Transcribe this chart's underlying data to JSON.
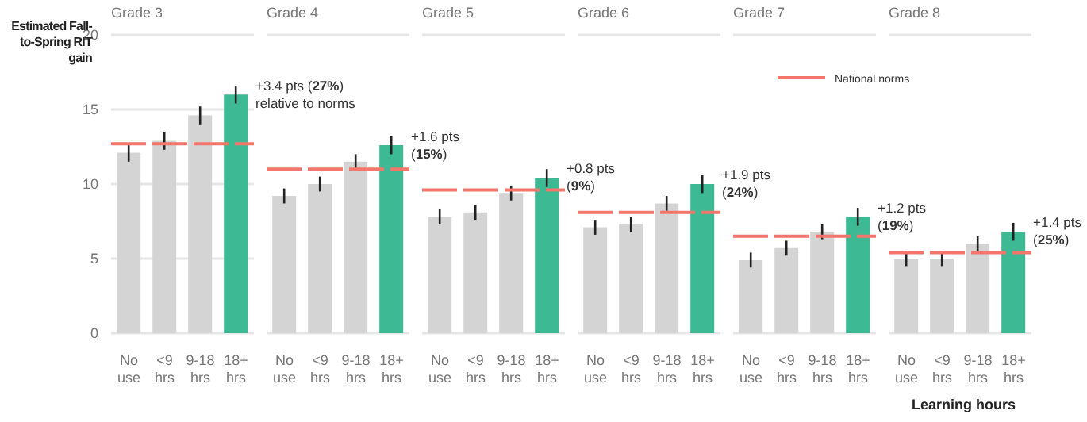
{
  "chart_data": [
    {
      "type": "bar",
      "title": "Grade 3",
      "ylabel": "Estimated Fall-to-Spring RIT gain",
      "categories": [
        "No use",
        "<9 hrs",
        "9-18 hrs",
        "18+ hrs"
      ],
      "values": [
        12.1,
        12.9,
        14.6,
        16.0
      ],
      "errors": [
        0.6,
        0.6,
        0.6,
        0.6
      ],
      "colors": [
        "#d4d4d4",
        "#d4d4d4",
        "#d4d4d4",
        "#3dba93"
      ],
      "ylim": [
        0,
        20
      ],
      "yticks": [
        0,
        5,
        10,
        15,
        20
      ],
      "grid": "y",
      "ref_lines": [
        {
          "axis": "y",
          "value": 12.7,
          "color": "#f2766b",
          "line_style": "dashed"
        }
      ],
      "annotations": [
        "+3.4 pts (27%) relative to norms"
      ]
    },
    {
      "type": "bar",
      "title": "Grade 4",
      "categories": [
        "No use",
        "<9 hrs",
        "9-18 hrs",
        "18+ hrs"
      ],
      "values": [
        9.2,
        10.0,
        11.5,
        12.6
      ],
      "errors": [
        0.5,
        0.5,
        0.5,
        0.6
      ],
      "colors": [
        "#d4d4d4",
        "#d4d4d4",
        "#d4d4d4",
        "#3dba93"
      ],
      "ylim": [
        0,
        20
      ],
      "yticks": [
        0,
        5,
        10,
        15,
        20
      ],
      "grid": "y",
      "tick_labels": "x",
      "ref_lines": [
        {
          "axis": "y",
          "value": 11.0,
          "color": "#f2766b",
          "line_style": "dashed"
        }
      ],
      "annotations": [
        "+1.6 pts (15%)"
      ]
    },
    {
      "type": "bar",
      "title": "Grade 5",
      "categories": [
        "No use",
        "<9 hrs",
        "9-18 hrs",
        "18+ hrs"
      ],
      "values": [
        7.8,
        8.1,
        9.4,
        10.4
      ],
      "errors": [
        0.5,
        0.5,
        0.5,
        0.6
      ],
      "colors": [
        "#d4d4d4",
        "#d4d4d4",
        "#d4d4d4",
        "#3dba93"
      ],
      "ylim": [
        0,
        20
      ],
      "yticks": [
        0,
        5,
        10,
        15,
        20
      ],
      "grid": "y",
      "tick_labels": "x",
      "ref_lines": [
        {
          "axis": "y",
          "value": 9.6,
          "color": "#f2766b",
          "line_style": "dashed"
        }
      ],
      "annotations": [
        "+0.8 pts (9%)"
      ]
    },
    {
      "type": "bar",
      "title": "Grade 6",
      "categories": [
        "No use",
        "<9 hrs",
        "9-18 hrs",
        "18+ hrs"
      ],
      "values": [
        7.1,
        7.3,
        8.7,
        10.0
      ],
      "errors": [
        0.5,
        0.5,
        0.5,
        0.6
      ],
      "colors": [
        "#d4d4d4",
        "#d4d4d4",
        "#d4d4d4",
        "#3dba93"
      ],
      "ylim": [
        0,
        20
      ],
      "yticks": [
        0,
        5,
        10,
        15,
        20
      ],
      "grid": "y",
      "tick_labels": "x",
      "ref_lines": [
        {
          "axis": "y",
          "value": 8.1,
          "color": "#f2766b",
          "line_style": "dashed"
        }
      ],
      "annotations": [
        "+1.9 pts (24%)"
      ]
    },
    {
      "type": "bar",
      "title": "Grade 7",
      "categories": [
        "No use",
        "<9 hrs",
        "9-18 hrs",
        "18+ hrs"
      ],
      "values": [
        4.9,
        5.7,
        6.8,
        7.8
      ],
      "errors": [
        0.5,
        0.5,
        0.5,
        0.6
      ],
      "colors": [
        "#d4d4d4",
        "#d4d4d4",
        "#d4d4d4",
        "#3dba93"
      ],
      "ylim": [
        0,
        20
      ],
      "yticks": [
        0,
        5,
        10,
        15,
        20
      ],
      "grid": "y",
      "tick_labels": "x",
      "ref_lines": [
        {
          "axis": "y",
          "value": 6.5,
          "color": "#f2766b",
          "line_style": "dashed"
        }
      ],
      "annotations": [
        "+1.2 pts (19%)"
      ]
    },
    {
      "type": "bar",
      "title": "Grade 8",
      "xlabel": "Learning hours",
      "categories": [
        "No use",
        "<9 hrs",
        "9-18 hrs",
        "18+ hrs"
      ],
      "values": [
        5.0,
        5.0,
        6.0,
        6.8
      ],
      "errors": [
        0.5,
        0.5,
        0.5,
        0.6
      ],
      "colors": [
        "#d4d4d4",
        "#d4d4d4",
        "#d4d4d4",
        "#3dba93"
      ],
      "ylim": [
        0,
        20
      ],
      "yticks": [
        0,
        5,
        10,
        15,
        20
      ],
      "grid": "y",
      "tick_labels": "x",
      "ref_lines": [
        {
          "axis": "y",
          "value": 5.4,
          "color": "#f2766b",
          "line_style": "dashed",
          "label": "National norms"
        }
      ],
      "annotations": [
        "+1.4 pts (25%)"
      ]
    }
  ]
}
